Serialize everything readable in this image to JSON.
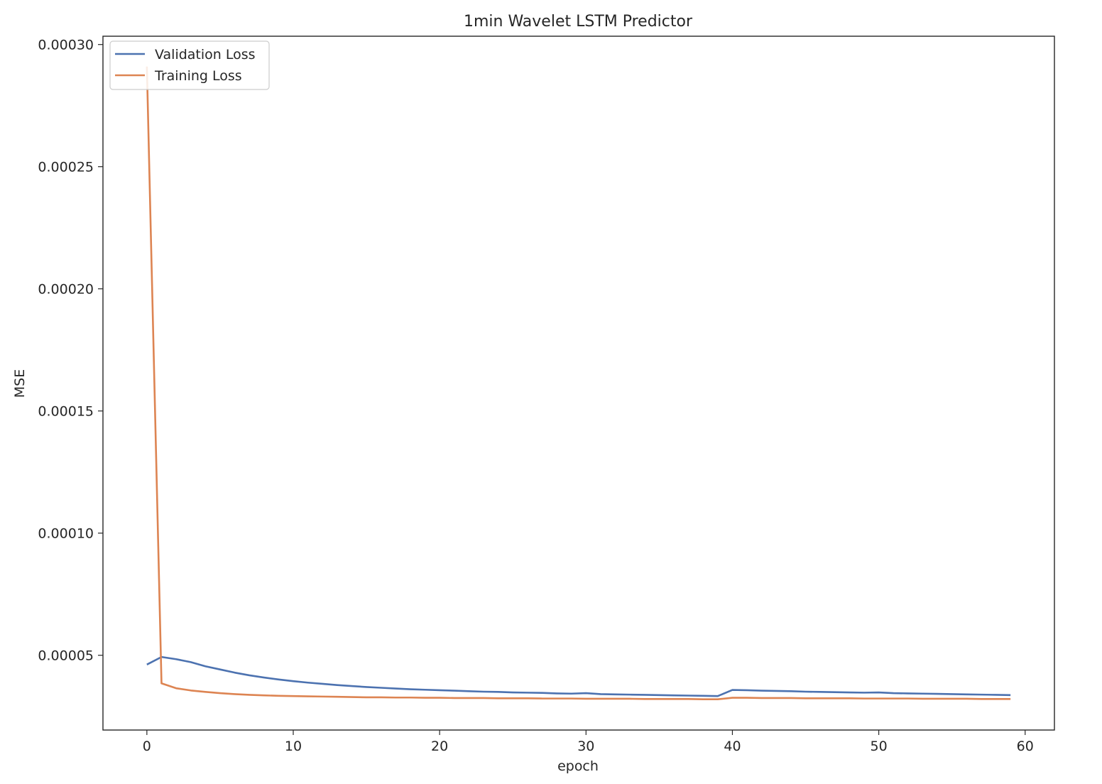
{
  "chart_data": {
    "type": "line",
    "title": "1min Wavelet LSTM Predictor",
    "xlabel": "epoch",
    "ylabel": "MSE",
    "xlim": [
      -3,
      62
    ],
    "ylim": [
      1.94e-05,
      0.0003034
    ],
    "xticks": [
      0,
      10,
      20,
      30,
      40,
      50,
      60
    ],
    "xtick_labels": [
      "0",
      "10",
      "20",
      "30",
      "40",
      "50",
      "60"
    ],
    "yticks": [
      5e-05,
      0.0001,
      0.00015,
      0.0002,
      0.00025,
      0.0003
    ],
    "ytick_labels": [
      "0.00005",
      "0.00010",
      "0.00015",
      "0.00020",
      "0.00025",
      "0.00030"
    ],
    "grid": false,
    "legend_position": "upper left",
    "x": [
      0,
      1,
      2,
      3,
      4,
      5,
      6,
      7,
      8,
      9,
      10,
      11,
      12,
      13,
      14,
      15,
      16,
      17,
      18,
      19,
      20,
      21,
      22,
      23,
      24,
      25,
      26,
      27,
      28,
      29,
      30,
      31,
      32,
      33,
      34,
      35,
      36,
      37,
      38,
      39,
      40,
      41,
      42,
      43,
      44,
      45,
      46,
      47,
      48,
      49,
      50,
      51,
      52,
      53,
      54,
      55,
      56,
      57,
      58,
      59
    ],
    "series": [
      {
        "name": "Validation Loss",
        "color": "#4c72b0",
        "values": [
          4.62e-05,
          4.93e-05,
          4.84e-05,
          4.72e-05,
          4.55e-05,
          4.42e-05,
          4.29e-05,
          4.18e-05,
          4.09e-05,
          4.01e-05,
          3.94e-05,
          3.88e-05,
          3.83e-05,
          3.78e-05,
          3.74e-05,
          3.7e-05,
          3.67e-05,
          3.64e-05,
          3.61e-05,
          3.59e-05,
          3.57e-05,
          3.55e-05,
          3.53e-05,
          3.51e-05,
          3.5e-05,
          3.48e-05,
          3.47e-05,
          3.46e-05,
          3.44e-05,
          3.43e-05,
          3.45e-05,
          3.41e-05,
          3.4e-05,
          3.39e-05,
          3.38e-05,
          3.37e-05,
          3.36e-05,
          3.35e-05,
          3.34e-05,
          3.33e-05,
          3.58e-05,
          3.57e-05,
          3.55e-05,
          3.54e-05,
          3.53e-05,
          3.51e-05,
          3.5e-05,
          3.49e-05,
          3.48e-05,
          3.47e-05,
          3.48e-05,
          3.45e-05,
          3.44e-05,
          3.43e-05,
          3.42e-05,
          3.41e-05,
          3.4e-05,
          3.39e-05,
          3.38e-05,
          3.37e-05
        ]
      },
      {
        "name": "Training Loss",
        "color": "#dd8452",
        "values": [
          0.000291,
          3.85e-05,
          3.65e-05,
          3.56e-05,
          3.5e-05,
          3.45e-05,
          3.41e-05,
          3.38e-05,
          3.36e-05,
          3.34e-05,
          3.33e-05,
          3.32e-05,
          3.31e-05,
          3.3e-05,
          3.29e-05,
          3.28e-05,
          3.28e-05,
          3.27e-05,
          3.27e-05,
          3.26e-05,
          3.26e-05,
          3.25e-05,
          3.25e-05,
          3.25e-05,
          3.24e-05,
          3.24e-05,
          3.24e-05,
          3.23e-05,
          3.23e-05,
          3.23e-05,
          3.22e-05,
          3.22e-05,
          3.22e-05,
          3.22e-05,
          3.21e-05,
          3.21e-05,
          3.21e-05,
          3.21e-05,
          3.2e-05,
          3.2e-05,
          3.26e-05,
          3.26e-05,
          3.25e-05,
          3.25e-05,
          3.25e-05,
          3.24e-05,
          3.24e-05,
          3.24e-05,
          3.24e-05,
          3.23e-05,
          3.23e-05,
          3.23e-05,
          3.23e-05,
          3.22e-05,
          3.22e-05,
          3.22e-05,
          3.22e-05,
          3.21e-05,
          3.21e-05,
          3.21e-05
        ]
      }
    ]
  }
}
